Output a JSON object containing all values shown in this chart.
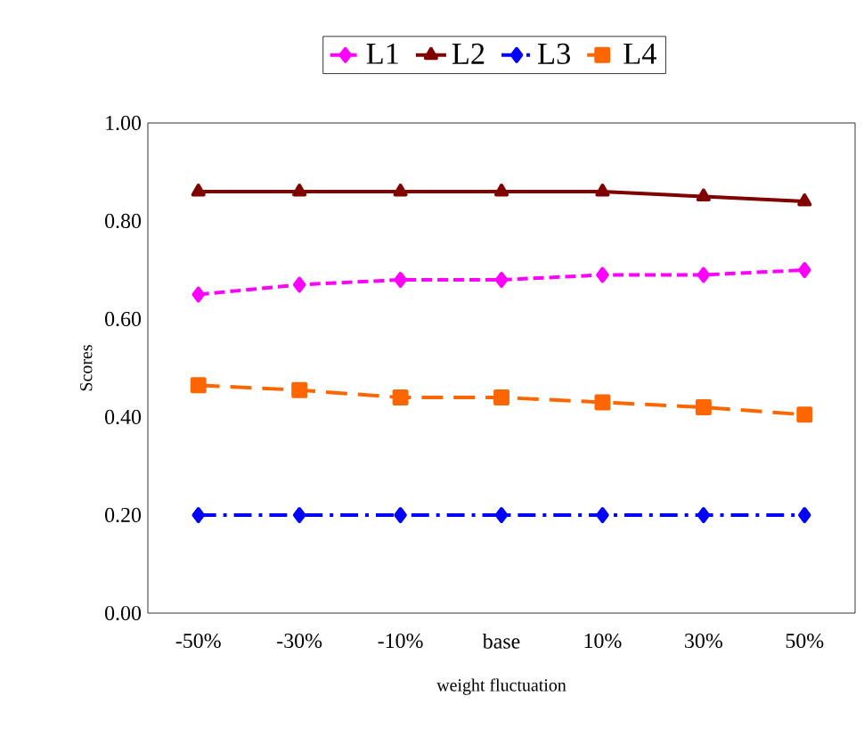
{
  "chart_data": {
    "type": "line",
    "xlabel": "weight fluctuation",
    "ylabel": "Scores",
    "categories": [
      "-50%",
      "-30%",
      "-10%",
      "base",
      "10%",
      "30%",
      "50%"
    ],
    "series": [
      {
        "name": "L1",
        "color": "#ff00ff",
        "marker": "diamond",
        "line_style": "dashed",
        "values": [
          0.65,
          0.67,
          0.68,
          0.68,
          0.69,
          0.69,
          0.7
        ]
      },
      {
        "name": "L2",
        "color": "#800000",
        "marker": "triangle",
        "line_style": "solid",
        "values": [
          0.86,
          0.86,
          0.86,
          0.86,
          0.86,
          0.85,
          0.84
        ]
      },
      {
        "name": "L3",
        "color": "#0000ff",
        "marker": "diamond",
        "line_style": "dashdot",
        "values": [
          0.2,
          0.2,
          0.2,
          0.2,
          0.2,
          0.2,
          0.2
        ]
      },
      {
        "name": "L4",
        "color": "#ff6600",
        "marker": "square",
        "line_style": "longdashed",
        "values": [
          0.465,
          0.455,
          0.44,
          0.44,
          0.43,
          0.42,
          0.405
        ]
      }
    ],
    "ylim": [
      0,
      1
    ],
    "yticks": [
      {
        "value": 0,
        "label": "0.00"
      },
      {
        "value": 0.2,
        "label": "0.20"
      },
      {
        "value": 0.4,
        "label": "0.40"
      },
      {
        "value": 0.6,
        "label": "0.60"
      },
      {
        "value": 0.8,
        "label": "0.80"
      },
      {
        "value": 1,
        "label": "1.00"
      }
    ],
    "grid": false,
    "legend": "top"
  }
}
